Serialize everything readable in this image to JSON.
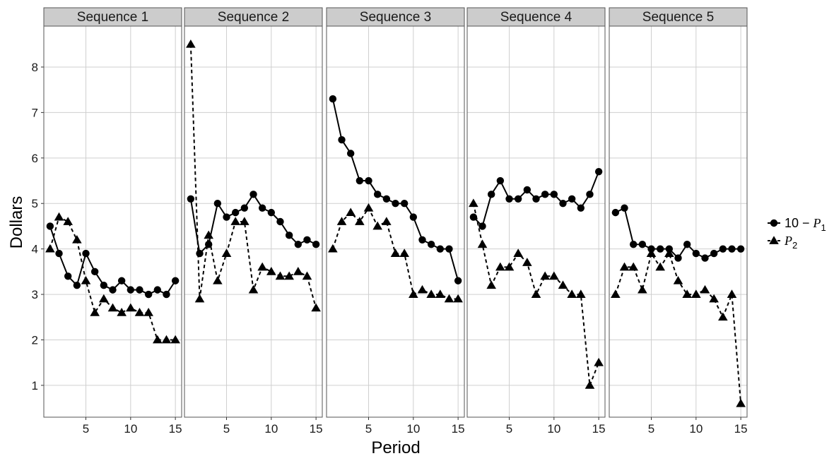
{
  "chart_data": {
    "type": "line",
    "xlabel": "Period",
    "ylabel": "Dollars",
    "xlim": [
      0.3,
      15.7
    ],
    "ylim": [
      0.3,
      8.9
    ],
    "xticks": [
      5,
      10,
      15
    ],
    "yticks": [
      1,
      2,
      3,
      4,
      5,
      6,
      7,
      8
    ],
    "grid": true,
    "legend_position": "right",
    "legend": [
      {
        "prefix": "10 − ",
        "symbol": "P",
        "subscript": "1",
        "marker": "circle",
        "line": "solid"
      },
      {
        "prefix": "",
        "symbol": "P",
        "subscript": "2",
        "marker": "triangle",
        "line": "dashed"
      }
    ],
    "x": [
      1,
      2,
      3,
      4,
      5,
      6,
      7,
      8,
      9,
      10,
      11,
      12,
      13,
      14,
      15
    ],
    "panels": [
      {
        "title": "Sequence 1",
        "series": [
          {
            "values": [
              4.5,
              3.9,
              3.4,
              3.2,
              3.9,
              3.5,
              3.2,
              3.1,
              3.3,
              3.1,
              3.1,
              3.0,
              3.1,
              3.0,
              3.3
            ]
          },
          {
            "values": [
              4.0,
              4.7,
              4.6,
              4.2,
              3.3,
              2.6,
              2.9,
              2.7,
              2.6,
              2.7,
              2.6,
              2.6,
              2.0,
              2.0,
              2.0
            ]
          }
        ]
      },
      {
        "title": "Sequence 2",
        "series": [
          {
            "values": [
              5.1,
              3.9,
              4.1,
              5.0,
              4.7,
              4.8,
              4.9,
              5.2,
              4.9,
              4.8,
              4.6,
              4.3,
              4.1,
              4.2,
              4.1
            ]
          },
          {
            "values": [
              8.5,
              2.9,
              4.3,
              3.3,
              3.9,
              4.6,
              4.6,
              3.1,
              3.6,
              3.5,
              3.4,
              3.4,
              3.5,
              3.4,
              2.7
            ]
          }
        ]
      },
      {
        "title": "Sequence 3",
        "series": [
          {
            "values": [
              7.3,
              6.4,
              6.1,
              5.5,
              5.5,
              5.2,
              5.1,
              5.0,
              5.0,
              4.7,
              4.2,
              4.1,
              4.0,
              4.0,
              3.3
            ]
          },
          {
            "values": [
              4.0,
              4.6,
              4.8,
              4.6,
              4.9,
              4.5,
              4.6,
              3.9,
              3.9,
              3.0,
              3.1,
              3.0,
              3.0,
              2.9,
              2.9
            ]
          }
        ]
      },
      {
        "title": "Sequence 4",
        "series": [
          {
            "values": [
              4.7,
              4.5,
              5.2,
              5.5,
              5.1,
              5.1,
              5.3,
              5.1,
              5.2,
              5.2,
              5.0,
              5.1,
              4.9,
              5.2,
              5.7
            ]
          },
          {
            "values": [
              5.0,
              4.1,
              3.2,
              3.6,
              3.6,
              3.9,
              3.7,
              3.0,
              3.4,
              3.4,
              3.2,
              3.0,
              3.0,
              1.0,
              1.5
            ]
          }
        ]
      },
      {
        "title": "Sequence 5",
        "series": [
          {
            "values": [
              4.8,
              4.9,
              4.1,
              4.1,
              4.0,
              4.0,
              4.0,
              3.8,
              4.1,
              3.9,
              3.8,
              3.9,
              4.0,
              4.0,
              4.0
            ]
          },
          {
            "values": [
              3.0,
              3.6,
              3.6,
              3.1,
              3.9,
              3.6,
              3.9,
              3.3,
              3.0,
              3.0,
              3.1,
              2.9,
              2.5,
              3.0,
              0.6
            ]
          }
        ]
      }
    ]
  }
}
